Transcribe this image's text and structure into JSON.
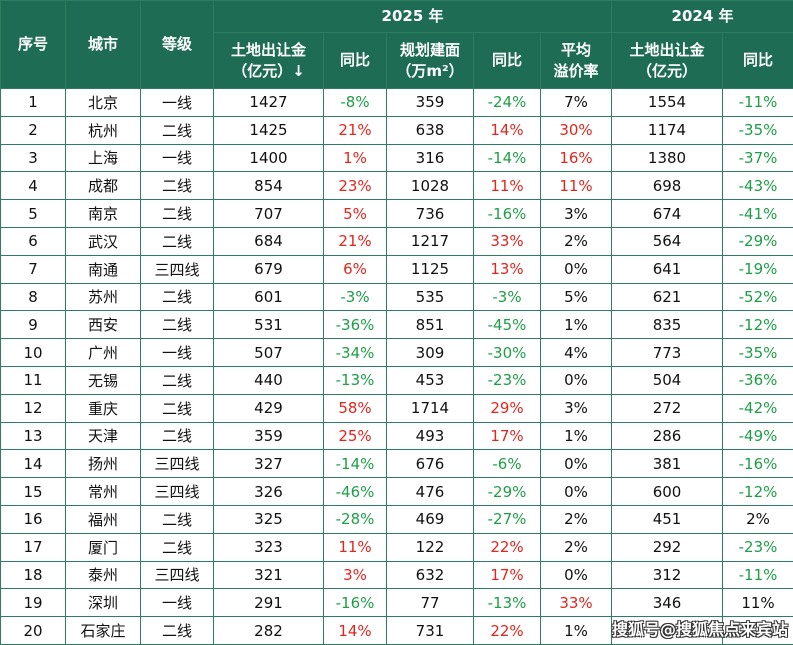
{
  "table": {
    "header_top": [
      "序号",
      "城市",
      "等级",
      "2025 年",
      "2024 年"
    ],
    "header_sub": [
      [
        "土地出让金",
        "（亿元）↓"
      ],
      [
        "同比"
      ],
      [
        "规划建面",
        "（万m²）"
      ],
      [
        "同比"
      ],
      [
        "平均",
        "溢价率"
      ],
      [
        "土地出让金",
        "（亿元）"
      ],
      [
        "同比"
      ]
    ],
    "colors": {
      "header_bg": "#1e6c53",
      "border": "#2f7d60",
      "up": "#e0261f",
      "down": "#1f9e48"
    },
    "rows": [
      [
        "1",
        "北京",
        "一线",
        "1427",
        "-8%",
        "359",
        "-24%",
        "7%",
        "1554",
        "-11%"
      ],
      [
        "2",
        "杭州",
        "二线",
        "1425",
        "21%",
        "638",
        "14%",
        "30%",
        "1174",
        "-35%"
      ],
      [
        "3",
        "上海",
        "一线",
        "1400",
        "1%",
        "316",
        "-14%",
        "16%",
        "1380",
        "-37%"
      ],
      [
        "4",
        "成都",
        "二线",
        "854",
        "23%",
        "1028",
        "11%",
        "11%",
        "698",
        "-43%"
      ],
      [
        "5",
        "南京",
        "二线",
        "707",
        "5%",
        "736",
        "-16%",
        "3%",
        "674",
        "-41%"
      ],
      [
        "6",
        "武汉",
        "二线",
        "684",
        "21%",
        "1217",
        "33%",
        "2%",
        "564",
        "-29%"
      ],
      [
        "7",
        "南通",
        "三四线",
        "679",
        "6%",
        "1125",
        "13%",
        "0%",
        "641",
        "-19%"
      ],
      [
        "8",
        "苏州",
        "二线",
        "601",
        "-3%",
        "535",
        "-3%",
        "5%",
        "621",
        "-52%"
      ],
      [
        "9",
        "西安",
        "二线",
        "531",
        "-36%",
        "851",
        "-45%",
        "1%",
        "835",
        "-12%"
      ],
      [
        "10",
        "广州",
        "一线",
        "507",
        "-34%",
        "309",
        "-30%",
        "4%",
        "773",
        "-35%"
      ],
      [
        "11",
        "无锡",
        "二线",
        "440",
        "-13%",
        "453",
        "-23%",
        "0%",
        "504",
        "-36%"
      ],
      [
        "12",
        "重庆",
        "二线",
        "429",
        "58%",
        "1714",
        "29%",
        "3%",
        "272",
        "-42%"
      ],
      [
        "13",
        "天津",
        "二线",
        "359",
        "25%",
        "493",
        "17%",
        "1%",
        "286",
        "-49%"
      ],
      [
        "14",
        "扬州",
        "三四线",
        "327",
        "-14%",
        "676",
        "-6%",
        "0%",
        "381",
        "-16%"
      ],
      [
        "15",
        "常州",
        "三四线",
        "326",
        "-46%",
        "476",
        "-29%",
        "0%",
        "600",
        "-12%"
      ],
      [
        "16",
        "福州",
        "二线",
        "325",
        "-28%",
        "469",
        "-27%",
        "2%",
        "451",
        "2%"
      ],
      [
        "17",
        "厦门",
        "二线",
        "323",
        "11%",
        "122",
        "22%",
        "2%",
        "292",
        "-23%"
      ],
      [
        "18",
        "泰州",
        "三四线",
        "321",
        "3%",
        "632",
        "17%",
        "0%",
        "312",
        "-11%"
      ],
      [
        "19",
        "深圳",
        "一线",
        "291",
        "-16%",
        "77",
        "-13%",
        "33%",
        "346",
        "11%"
      ],
      [
        "20",
        "石家庄",
        "二线",
        "282",
        "14%",
        "731",
        "22%",
        "1%"
      ]
    ]
  },
  "watermark": "搜狐号@搜狐焦点来宾站"
}
